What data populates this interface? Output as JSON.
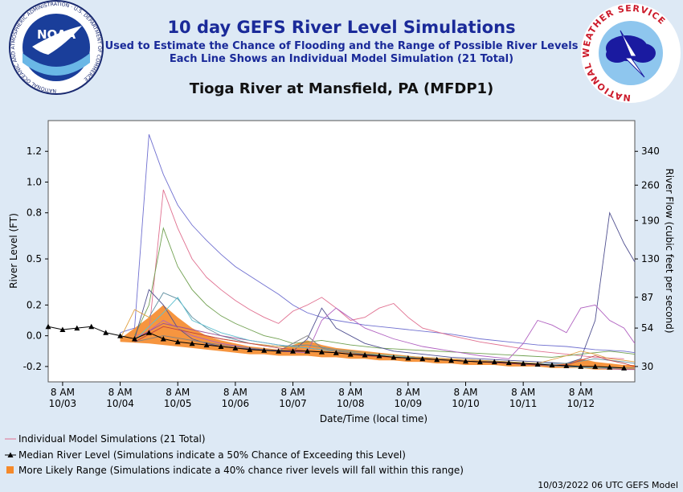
{
  "header": {
    "title": "10 day GEFS River Level Simulations",
    "subtitle1": "Used to Estimate the Chance of Flooding and the Range of Possible River Levels",
    "subtitle2": "Each Line Shows an Individual Model Simulation (21 Total)",
    "location": "Tioga River at Mansfield, PA (MFDP1)",
    "noaa_logo_text": "NOAA",
    "noaa_ring_text": "NATIONAL OCEANIC AND ATMOSPHERIC ADMINISTRATION · U.S. DEPARTMENT OF COMMERCE",
    "nws_ring_text": "NATIONAL WEATHER SERVICE"
  },
  "legend": {
    "simulations": "Individual Model Simulations (21 Total)",
    "median": "Median River Level (Simulations indicate a 50% Chance of Exceeding this Level)",
    "range": "More Likely Range (Simulations indicate a 40% chance river levels will fall within this range)"
  },
  "footer": "10/03/2022 06 UTC GEFS Model",
  "colors": {
    "background": "#dde9f5",
    "title": "#1a2a99",
    "range_fill": "#f5892a",
    "median": "#000000",
    "simulation_colors": [
      "#7070d0",
      "#e07090",
      "#70a050",
      "#505090",
      "#b060c0",
      "#6090a0",
      "#e0a040",
      "#a05090",
      "#60c0d0",
      "#808080",
      "#c04040"
    ]
  },
  "chart_data": {
    "type": "line",
    "xlabel": "Date/Time (local time)",
    "ylabel": "River Level (FT)",
    "y2label": "River Flow (cubic feet per second)",
    "ylim": [
      -0.3,
      1.4
    ],
    "xlim": [
      0,
      244.5
    ],
    "x_tick_labels": [
      [
        "8 AM",
        "10/03"
      ],
      [
        "8 AM",
        "10/04"
      ],
      [
        "8 AM",
        "10/05"
      ],
      [
        "8 AM",
        "10/06"
      ],
      [
        "8 AM",
        "10/07"
      ],
      [
        "8 AM",
        "10/08"
      ],
      [
        "8 AM",
        "10/09"
      ],
      [
        "8 AM",
        "10/10"
      ],
      [
        "8 AM",
        "10/11"
      ],
      [
        "8 AM",
        "10/12"
      ]
    ],
    "x_ticks_hours": [
      6,
      30,
      54,
      78,
      102,
      126,
      150,
      174,
      198,
      222
    ],
    "y_ticks": [
      -0.2,
      0.0,
      0.2,
      0.5,
      0.8,
      1.0,
      1.2
    ],
    "y_tick_labels": [
      "-0.2",
      "0.0",
      "0.2",
      "0.5",
      "0.8",
      "1.0",
      "1.2"
    ],
    "y2_ticks": [
      {
        "label": "30",
        "level": -0.2
      },
      {
        "label": "54",
        "level": 0.05
      },
      {
        "label": "87",
        "level": 0.25
      },
      {
        "label": "130",
        "level": 0.5
      },
      {
        "label": "190",
        "level": 0.75
      },
      {
        "label": "260",
        "level": 0.98
      },
      {
        "label": "340",
        "level": 1.2
      }
    ],
    "grid": false,
    "legend_position": "bottom-left",
    "median": {
      "x": [
        0,
        6,
        12,
        18,
        24,
        30,
        36,
        42,
        48,
        54,
        60,
        66,
        72,
        78,
        84,
        90,
        96,
        102,
        108,
        114,
        120,
        126,
        132,
        138,
        144,
        150,
        156,
        162,
        168,
        174,
        180,
        186,
        192,
        198,
        204,
        210,
        216,
        222,
        228,
        234,
        240
      ],
      "y": [
        0.06,
        0.04,
        0.05,
        0.06,
        0.02,
        0.0,
        -0.02,
        0.02,
        -0.02,
        -0.04,
        -0.05,
        -0.06,
        -0.07,
        -0.08,
        -0.09,
        -0.095,
        -0.1,
        -0.1,
        -0.1,
        -0.105,
        -0.11,
        -0.12,
        -0.125,
        -0.13,
        -0.14,
        -0.145,
        -0.15,
        -0.155,
        -0.16,
        -0.165,
        -0.17,
        -0.17,
        -0.175,
        -0.18,
        -0.185,
        -0.19,
        -0.195,
        -0.2,
        -0.2,
        -0.205,
        -0.21
      ]
    },
    "range": {
      "x": [
        30,
        36,
        42,
        48,
        54,
        60,
        66,
        72,
        78,
        84,
        90,
        96,
        102,
        108,
        114,
        120,
        126,
        132,
        138,
        144,
        150,
        156,
        162,
        168,
        174,
        180,
        186,
        192,
        198,
        204,
        210,
        216,
        222,
        228,
        234,
        240,
        244.5
      ],
      "upper": [
        -0.02,
        0.05,
        0.12,
        0.2,
        0.12,
        0.05,
        0.0,
        -0.03,
        -0.05,
        -0.07,
        -0.08,
        -0.09,
        -0.06,
        -0.03,
        -0.06,
        -0.08,
        -0.09,
        -0.1,
        -0.11,
        -0.12,
        -0.13,
        -0.14,
        -0.15,
        -0.15,
        -0.16,
        -0.16,
        -0.17,
        -0.17,
        -0.18,
        -0.18,
        -0.19,
        -0.18,
        -0.15,
        -0.17,
        -0.18,
        -0.19,
        -0.19
      ],
      "lower": [
        -0.04,
        -0.045,
        -0.05,
        -0.06,
        -0.07,
        -0.08,
        -0.09,
        -0.1,
        -0.11,
        -0.12,
        -0.12,
        -0.13,
        -0.13,
        -0.13,
        -0.14,
        -0.14,
        -0.15,
        -0.15,
        -0.16,
        -0.16,
        -0.17,
        -0.17,
        -0.18,
        -0.18,
        -0.19,
        -0.19,
        -0.19,
        -0.2,
        -0.2,
        -0.2,
        -0.21,
        -0.21,
        -0.21,
        -0.22,
        -0.22,
        -0.22,
        -0.22
      ]
    },
    "series": [
      {
        "color": "#7070d0",
        "x": [
          30,
          36,
          42,
          48,
          54,
          60,
          66,
          72,
          78,
          84,
          90,
          96,
          102,
          108,
          114,
          120,
          132,
          144,
          156,
          168,
          180,
          192,
          204,
          216,
          228,
          240,
          244.5
        ],
        "y": [
          0.02,
          0.05,
          1.31,
          1.05,
          0.85,
          0.72,
          0.62,
          0.53,
          0.45,
          0.39,
          0.33,
          0.27,
          0.2,
          0.15,
          0.12,
          0.1,
          0.07,
          0.05,
          0.03,
          0.01,
          -0.02,
          -0.04,
          -0.06,
          -0.07,
          -0.09,
          -0.1,
          -0.11
        ]
      },
      {
        "color": "#e07090",
        "x": [
          36,
          42,
          48,
          54,
          60,
          66,
          72,
          78,
          84,
          90,
          96,
          102,
          108,
          114,
          120,
          126,
          132,
          138,
          144,
          150,
          156,
          168,
          180,
          192,
          204,
          216,
          228,
          240
        ],
        "y": [
          0.0,
          0.02,
          0.95,
          0.7,
          0.5,
          0.38,
          0.3,
          0.23,
          0.17,
          0.12,
          0.08,
          0.16,
          0.2,
          0.25,
          0.18,
          0.1,
          0.12,
          0.18,
          0.21,
          0.12,
          0.05,
          0.0,
          -0.04,
          -0.07,
          -0.1,
          -0.12,
          -0.14,
          -0.15
        ]
      },
      {
        "color": "#70a050",
        "x": [
          36,
          42,
          48,
          54,
          60,
          66,
          72,
          78,
          84,
          90,
          96,
          102,
          114,
          126,
          138,
          150,
          162,
          174,
          186,
          198,
          210,
          222,
          234,
          244.5
        ],
        "y": [
          0.0,
          0.2,
          0.7,
          0.45,
          0.3,
          0.2,
          0.13,
          0.08,
          0.04,
          0.0,
          -0.02,
          -0.05,
          -0.03,
          -0.06,
          -0.08,
          -0.09,
          -0.1,
          -0.11,
          -0.12,
          -0.13,
          -0.14,
          -0.12,
          -0.1,
          -0.12
        ]
      },
      {
        "color": "#505090",
        "x": [
          36,
          42,
          48,
          54,
          60,
          66,
          72,
          78,
          90,
          102,
          108,
          114,
          120,
          132,
          144,
          156,
          168,
          180,
          192,
          204,
          216,
          222,
          228,
          234,
          240,
          244.5
        ],
        "y": [
          -0.02,
          0.3,
          0.2,
          0.05,
          -0.02,
          -0.05,
          -0.07,
          -0.08,
          -0.09,
          -0.1,
          -0.02,
          0.18,
          0.05,
          -0.05,
          -0.1,
          -0.12,
          -0.14,
          -0.15,
          -0.16,
          -0.17,
          -0.18,
          -0.15,
          0.1,
          0.8,
          0.6,
          0.48
        ]
      },
      {
        "color": "#b060c0",
        "x": [
          42,
          48,
          54,
          60,
          72,
          84,
          96,
          108,
          114,
          120,
          132,
          144,
          156,
          168,
          180,
          192,
          198,
          204,
          210,
          216,
          222,
          228,
          234,
          240,
          244.5
        ],
        "y": [
          0.03,
          0.1,
          0.05,
          0.0,
          -0.05,
          -0.08,
          -0.1,
          -0.11,
          0.1,
          0.18,
          0.05,
          -0.02,
          -0.07,
          -0.1,
          -0.13,
          -0.15,
          -0.05,
          0.1,
          0.07,
          0.02,
          0.18,
          0.2,
          0.1,
          0.05,
          -0.05
        ]
      },
      {
        "color": "#6090a0",
        "x": [
          42,
          48,
          54,
          60,
          66,
          72,
          84,
          96,
          108,
          120,
          132,
          144,
          156,
          168,
          180,
          192,
          204,
          216,
          228,
          240,
          244.5
        ],
        "y": [
          0.12,
          0.28,
          0.24,
          0.12,
          0.05,
          0.0,
          -0.05,
          -0.07,
          -0.06,
          -0.09,
          -0.11,
          -0.13,
          -0.14,
          -0.15,
          -0.16,
          -0.17,
          -0.18,
          -0.18,
          -0.15,
          -0.17,
          -0.18
        ]
      },
      {
        "color": "#e0a040",
        "x": [
          30,
          36,
          42,
          48,
          54,
          60,
          72,
          84,
          96,
          108,
          120,
          132,
          144,
          156,
          168,
          180,
          192,
          204,
          216,
          222,
          228,
          234,
          240,
          244.5
        ],
        "y": [
          -0.02,
          0.17,
          0.12,
          0.08,
          0.05,
          0.02,
          -0.02,
          -0.05,
          -0.07,
          -0.08,
          -0.1,
          -0.11,
          -0.13,
          -0.14,
          -0.15,
          -0.16,
          -0.17,
          -0.18,
          -0.13,
          -0.1,
          -0.12,
          -0.15,
          -0.16,
          -0.17
        ]
      },
      {
        "color": "#a05090",
        "x": [
          36,
          48,
          60,
          72,
          84,
          96,
          108,
          120,
          132,
          144,
          156,
          168,
          180,
          192,
          204,
          216,
          228,
          240,
          244.5
        ],
        "y": [
          -0.02,
          0.08,
          0.04,
          0.0,
          -0.03,
          -0.06,
          -0.08,
          -0.1,
          -0.12,
          -0.14,
          -0.15,
          -0.16,
          -0.17,
          -0.18,
          -0.19,
          -0.2,
          -0.21,
          -0.22,
          -0.22
        ]
      },
      {
        "color": "#60c0d0",
        "x": [
          36,
          48,
          54,
          60,
          72,
          84,
          96,
          108,
          120,
          132,
          144,
          156,
          168,
          180,
          192,
          204,
          216,
          228,
          240,
          244.5
        ],
        "y": [
          -0.03,
          0.15,
          0.25,
          0.1,
          0.02,
          -0.03,
          -0.06,
          -0.08,
          -0.1,
          -0.12,
          -0.13,
          -0.15,
          -0.16,
          -0.17,
          -0.18,
          -0.19,
          -0.2,
          -0.21,
          -0.21,
          -0.21
        ]
      },
      {
        "color": "#808080",
        "x": [
          36,
          48,
          60,
          72,
          84,
          96,
          102,
          108,
          114,
          120,
          132,
          144,
          156,
          168,
          180,
          192,
          204,
          216,
          228,
          240,
          244.5
        ],
        "y": [
          -0.04,
          0.0,
          -0.03,
          -0.06,
          -0.08,
          -0.1,
          -0.05,
          0.0,
          -0.08,
          -0.1,
          -0.12,
          -0.14,
          -0.15,
          -0.16,
          -0.17,
          -0.18,
          -0.19,
          -0.2,
          -0.2,
          -0.21,
          -0.21
        ]
      },
      {
        "color": "#c04040",
        "x": [
          36,
          48,
          60,
          72,
          84,
          96,
          108,
          120,
          132,
          144,
          156,
          168,
          180,
          192,
          204,
          216,
          222,
          228,
          234,
          240,
          244.5
        ],
        "y": [
          -0.04,
          0.06,
          0.02,
          -0.02,
          -0.05,
          -0.08,
          -0.1,
          -0.11,
          -0.13,
          -0.14,
          -0.15,
          -0.16,
          -0.17,
          -0.18,
          -0.19,
          -0.19,
          -0.16,
          -0.13,
          -0.16,
          -0.18,
          -0.2
        ]
      }
    ]
  }
}
